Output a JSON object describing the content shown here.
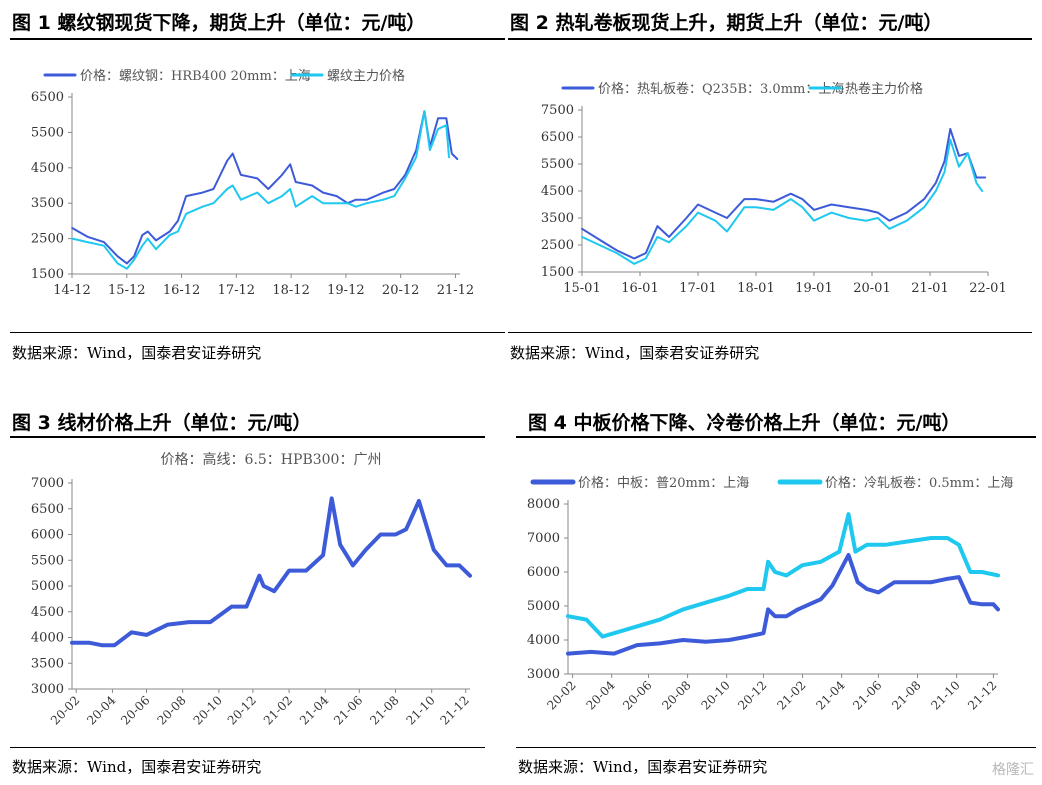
{
  "colors": {
    "dark": "#3d5bd9",
    "light": "#1ec8ee",
    "axis": "#888888",
    "text": "#333333"
  },
  "source_text": "数据来源：Wind，国泰君安证券研究",
  "watermark": "格隆汇",
  "chart_data": [
    {
      "type": "line",
      "title": "图 1 螺纹钢现货下降，期货上升（单位：元/吨）",
      "ylim": [
        1500,
        6500
      ],
      "yticks": [
        1500,
        2500,
        3500,
        4500,
        5500,
        6500
      ],
      "xlim": [
        2014.917,
        2022.0
      ],
      "xticks": [
        {
          "v": 2014.917,
          "l": "14-12"
        },
        {
          "v": 2015.917,
          "l": "15-12"
        },
        {
          "v": 2016.917,
          "l": "16-12"
        },
        {
          "v": 2017.917,
          "l": "17-12"
        },
        {
          "v": 2018.917,
          "l": "18-12"
        },
        {
          "v": 2019.917,
          "l": "19-12"
        },
        {
          "v": 2020.917,
          "l": "20-12"
        },
        {
          "v": 2021.917,
          "l": "21-12"
        }
      ],
      "legend_position": "top",
      "series": [
        {
          "name": "价格：螺纹钢：HRB400 20mm：上海",
          "color": "dark",
          "x": [
            2014.92,
            2015.2,
            2015.5,
            2015.75,
            2015.92,
            2016.05,
            2016.2,
            2016.3,
            2016.45,
            2016.7,
            2016.85,
            2017.0,
            2017.3,
            2017.5,
            2017.75,
            2017.85,
            2018.0,
            2018.3,
            2018.5,
            2018.75,
            2018.9,
            2019.0,
            2019.3,
            2019.5,
            2019.75,
            2019.95,
            2020.1,
            2020.3,
            2020.6,
            2020.8,
            2021.0,
            2021.2,
            2021.35,
            2021.45,
            2021.6,
            2021.75,
            2021.85,
            2021.95
          ],
          "values": [
            2800,
            2550,
            2400,
            2000,
            1800,
            2000,
            2600,
            2700,
            2450,
            2700,
            3000,
            3700,
            3800,
            3900,
            4700,
            4900,
            4300,
            4200,
            3900,
            4300,
            4600,
            4100,
            4000,
            3800,
            3700,
            3500,
            3600,
            3600,
            3800,
            3900,
            4300,
            5000,
            6100,
            5100,
            5900,
            5900,
            4900,
            4750
          ]
        },
        {
          "name": "螺纹主力价格",
          "color": "light",
          "x": [
            2014.92,
            2015.2,
            2015.5,
            2015.75,
            2015.92,
            2016.05,
            2016.2,
            2016.3,
            2016.45,
            2016.7,
            2016.85,
            2017.0,
            2017.3,
            2017.5,
            2017.75,
            2017.85,
            2018.0,
            2018.3,
            2018.5,
            2018.75,
            2018.9,
            2019.0,
            2019.3,
            2019.5,
            2019.75,
            2019.95,
            2020.1,
            2020.3,
            2020.6,
            2020.8,
            2021.0,
            2021.2,
            2021.35,
            2021.45,
            2021.6,
            2021.75,
            2021.8
          ],
          "values": [
            2500,
            2400,
            2300,
            1800,
            1650,
            1900,
            2300,
            2500,
            2200,
            2600,
            2700,
            3200,
            3400,
            3500,
            3900,
            4000,
            3600,
            3800,
            3500,
            3700,
            3900,
            3400,
            3700,
            3500,
            3500,
            3500,
            3400,
            3500,
            3600,
            3700,
            4200,
            4800,
            6100,
            5000,
            5600,
            5700,
            4800
          ]
        }
      ]
    },
    {
      "type": "line",
      "title": "图 2 热轧卷板现货上升，期货上升（单位：元/吨）",
      "ylim": [
        1500,
        7500
      ],
      "yticks": [
        1500,
        2500,
        3500,
        4500,
        5500,
        6500,
        7500
      ],
      "xlim": [
        2015.0,
        2022.0
      ],
      "xticks": [
        {
          "v": 2015.0,
          "l": "15-01"
        },
        {
          "v": 2016.0,
          "l": "16-01"
        },
        {
          "v": 2017.0,
          "l": "17-01"
        },
        {
          "v": 2018.0,
          "l": "18-01"
        },
        {
          "v": 2019.0,
          "l": "19-01"
        },
        {
          "v": 2020.0,
          "l": "20-01"
        },
        {
          "v": 2021.0,
          "l": "21-01"
        },
        {
          "v": 2022.0,
          "l": "22-01"
        }
      ],
      "legend_position": "top",
      "series": [
        {
          "name": "价格：热轧板卷：Q235B：3.0mm：上海",
          "color": "dark",
          "x": [
            2015.0,
            2015.3,
            2015.6,
            2015.9,
            2016.1,
            2016.3,
            2016.5,
            2016.8,
            2017.0,
            2017.3,
            2017.5,
            2017.8,
            2018.0,
            2018.3,
            2018.6,
            2018.8,
            2019.0,
            2019.3,
            2019.6,
            2019.9,
            2020.1,
            2020.3,
            2020.6,
            2020.9,
            2021.1,
            2021.25,
            2021.35,
            2021.5,
            2021.65,
            2021.8,
            2021.95
          ],
          "values": [
            3100,
            2700,
            2300,
            2000,
            2200,
            3200,
            2800,
            3500,
            4000,
            3700,
            3500,
            4200,
            4200,
            4100,
            4400,
            4200,
            3800,
            4000,
            3900,
            3800,
            3700,
            3400,
            3700,
            4200,
            4800,
            5600,
            6800,
            5800,
            5900,
            5000,
            5000
          ]
        },
        {
          "name": "热卷主力价格",
          "color": "light",
          "x": [
            2015.0,
            2015.3,
            2015.6,
            2015.9,
            2016.1,
            2016.3,
            2016.5,
            2016.8,
            2017.0,
            2017.3,
            2017.5,
            2017.8,
            2018.0,
            2018.3,
            2018.6,
            2018.8,
            2019.0,
            2019.3,
            2019.6,
            2019.9,
            2020.1,
            2020.3,
            2020.6,
            2020.9,
            2021.1,
            2021.25,
            2021.35,
            2021.5,
            2021.65,
            2021.8,
            2021.9
          ],
          "values": [
            2800,
            2500,
            2200,
            1800,
            2000,
            2800,
            2600,
            3200,
            3700,
            3400,
            3000,
            3900,
            3900,
            3800,
            4200,
            3900,
            3400,
            3700,
            3500,
            3400,
            3500,
            3100,
            3400,
            3900,
            4500,
            5200,
            6400,
            5400,
            5900,
            4800,
            4500
          ]
        }
      ]
    },
    {
      "type": "line",
      "title": "图 3 线材价格上升（单位：元/吨）",
      "ylim": [
        3000,
        7000
      ],
      "yticks": [
        3000,
        3500,
        4000,
        4500,
        5000,
        5500,
        6000,
        6500,
        7000
      ],
      "xlim": [
        2020.1,
        2021.97
      ],
      "xticks": [
        {
          "v": 2020.12,
          "l": "20-02"
        },
        {
          "v": 2020.29,
          "l": "20-04"
        },
        {
          "v": 2020.45,
          "l": "20-06"
        },
        {
          "v": 2020.62,
          "l": "20-08"
        },
        {
          "v": 2020.79,
          "l": "20-10"
        },
        {
          "v": 2020.95,
          "l": "20-12"
        },
        {
          "v": 2021.12,
          "l": "21-02"
        },
        {
          "v": 2021.29,
          "l": "21-04"
        },
        {
          "v": 2021.45,
          "l": "21-06"
        },
        {
          "v": 2021.62,
          "l": "21-08"
        },
        {
          "v": 2021.79,
          "l": "21-10"
        },
        {
          "v": 2021.95,
          "l": "21-12"
        }
      ],
      "legend_position": "top",
      "series": [
        {
          "name": "价格：高线：6.5：HPB300：广州",
          "color": "dark",
          "x": [
            2020.1,
            2020.18,
            2020.24,
            2020.3,
            2020.38,
            2020.45,
            2020.55,
            2020.65,
            2020.75,
            2020.85,
            2020.92,
            2020.98,
            2021.0,
            2021.05,
            2021.12,
            2021.2,
            2021.28,
            2021.32,
            2021.36,
            2021.39,
            2021.42,
            2021.48,
            2021.55,
            2021.62,
            2021.67,
            2021.73,
            2021.8,
            2021.86,
            2021.92,
            2021.97
          ],
          "values": [
            3900,
            3900,
            3850,
            3850,
            4100,
            4050,
            4250,
            4300,
            4300,
            4600,
            4600,
            5200,
            5000,
            4900,
            5300,
            5300,
            5600,
            6700,
            5800,
            5600,
            5400,
            5700,
            6000,
            6000,
            6100,
            6650,
            5700,
            5400,
            5400,
            5200
          ]
        }
      ]
    },
    {
      "type": "line",
      "title": "图 4 中板价格下降、冷卷价格上升（单位：元/吨）",
      "ylim": [
        3000,
        8000
      ],
      "yticks": [
        3000,
        4000,
        5000,
        6000,
        7000,
        8000
      ],
      "xlim": [
        2020.1,
        2021.97
      ],
      "xticks": [
        {
          "v": 2020.12,
          "l": "20-02"
        },
        {
          "v": 2020.29,
          "l": "20-04"
        },
        {
          "v": 2020.45,
          "l": "20-06"
        },
        {
          "v": 2020.62,
          "l": "20-08"
        },
        {
          "v": 2020.79,
          "l": "20-10"
        },
        {
          "v": 2020.95,
          "l": "20-12"
        },
        {
          "v": 2021.12,
          "l": "21-02"
        },
        {
          "v": 2021.29,
          "l": "21-04"
        },
        {
          "v": 2021.45,
          "l": "21-06"
        },
        {
          "v": 2021.62,
          "l": "21-08"
        },
        {
          "v": 2021.79,
          "l": "21-10"
        },
        {
          "v": 2021.95,
          "l": "21-12"
        }
      ],
      "legend_position": "top",
      "series": [
        {
          "name": "价格：中板：普20mm：上海",
          "color": "dark",
          "x": [
            2020.1,
            2020.2,
            2020.3,
            2020.4,
            2020.5,
            2020.6,
            2020.7,
            2020.8,
            2020.88,
            2020.95,
            2020.97,
            2021.0,
            2021.05,
            2021.1,
            2021.2,
            2021.25,
            2021.32,
            2021.36,
            2021.4,
            2021.45,
            2021.52,
            2021.6,
            2021.68,
            2021.75,
            2021.8,
            2021.85,
            2021.9,
            2021.95,
            2021.97
          ],
          "values": [
            3600,
            3650,
            3600,
            3850,
            3900,
            4000,
            3950,
            4000,
            4100,
            4200,
            4900,
            4700,
            4700,
            4900,
            5200,
            5600,
            6500,
            5700,
            5500,
            5400,
            5700,
            5700,
            5700,
            5800,
            5850,
            5100,
            5050,
            5050,
            4900
          ]
        },
        {
          "name": "价格：冷轧板卷：0.5mm：上海",
          "color": "light",
          "x": [
            2020.1,
            2020.18,
            2020.25,
            2020.35,
            2020.5,
            2020.6,
            2020.7,
            2020.8,
            2020.88,
            2020.95,
            2020.97,
            2021.0,
            2021.05,
            2021.12,
            2021.2,
            2021.28,
            2021.32,
            2021.35,
            2021.4,
            2021.48,
            2021.58,
            2021.68,
            2021.75,
            2021.8,
            2021.85,
            2021.9,
            2021.97
          ],
          "values": [
            4700,
            4600,
            4100,
            4300,
            4600,
            4900,
            5100,
            5300,
            5500,
            5500,
            6300,
            6000,
            5900,
            6200,
            6300,
            6600,
            7700,
            6600,
            6800,
            6800,
            6900,
            7000,
            7000,
            6800,
            6000,
            6000,
            5900
          ]
        }
      ]
    }
  ]
}
